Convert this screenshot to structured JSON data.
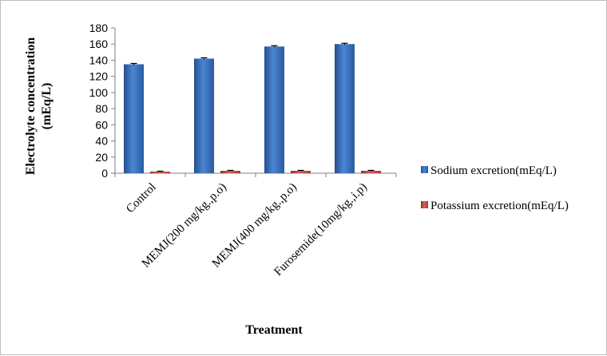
{
  "chart_data": {
    "type": "bar",
    "title": "",
    "xlabel": "Treatment",
    "ylabel_line1": "Electrolyte concentration",
    "ylabel_line2": "(mEq/L)",
    "categories": [
      "Control",
      "MEMJ(200 mg/kg.,p.o)",
      "MEMJ(400 mg/kg.,p.o)",
      "Furosemide(10mg/kg.,i.p)"
    ],
    "series": [
      {
        "name": "Sodium excretion(mEq/L)",
        "values": [
          135,
          142,
          157,
          160
        ],
        "errors": [
          1,
          1,
          1,
          1
        ],
        "color": "#3b6fc0"
      },
      {
        "name": "Potassium excretion(mEq/L)",
        "values": [
          2,
          3,
          3,
          3
        ],
        "errors": [
          0.5,
          0.5,
          0.5,
          0.5
        ],
        "color": "#c0504d"
      }
    ],
    "ylim": [
      0,
      180
    ],
    "yticks": [
      0,
      20,
      40,
      60,
      80,
      100,
      120,
      140,
      160,
      180
    ],
    "grid": false,
    "legend_position": "right"
  }
}
